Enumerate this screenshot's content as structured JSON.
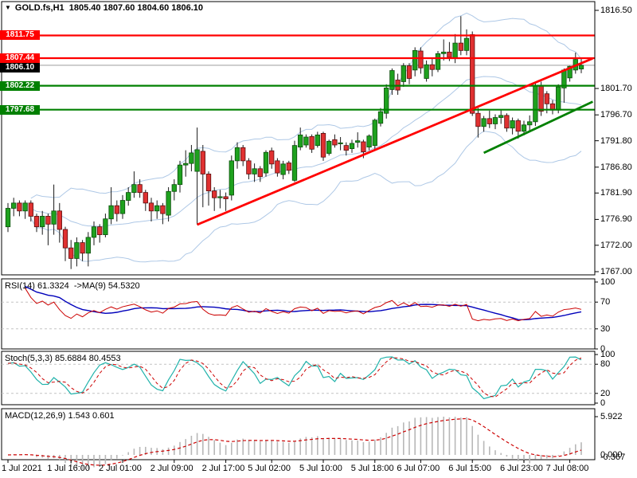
{
  "title_bar": {
    "dropdown_icon": "▼",
    "symbol": "GOLD.fs,H1",
    "ohlc_text": "1805.40 1807.60 1804.60 1806.10"
  },
  "colors": {
    "background": "#ffffff",
    "panel_border": "#000000",
    "bull_fill": "#1ea11e",
    "bull_stroke": "#0b4d0b",
    "bear_fill": "#e03131",
    "bear_stroke": "#5a0d0d",
    "wick": "#1a1a1a",
    "bollinger": "#aec8e6",
    "resistance_line": "#ff0000",
    "support_line": "#008000",
    "current_price_line": "#a8a8a8",
    "badge_red": "#ff0000",
    "badge_green": "#008000",
    "badge_black": "#000000",
    "rsi_line": "#cc0000",
    "rsi_ma_line": "#0000bb",
    "stoch_main": "#20b2aa",
    "stoch_signal": "#cc0000",
    "macd_histogram": "#b8b8b8",
    "macd_signal": "#cc0000",
    "level_dash": "#c4c4c4"
  },
  "chart_data": {
    "type": "candlestick",
    "title": "GOLD.fs,H1 1805.40 1807.60 1804.60 1806.10",
    "symbol": "GOLD.fs,H1",
    "timeframe": "H1",
    "last_candle": {
      "open": 1805.4,
      "high": 1807.6,
      "low": 1804.6,
      "close": 1806.1
    },
    "price_axis": {
      "min": 1767.0,
      "max": 1816.5,
      "plain_ticks": [
        1816.5,
        1801.7,
        1796.7,
        1791.8,
        1786.8,
        1781.9,
        1776.9,
        1772.0,
        1767.0
      ]
    },
    "levels": [
      {
        "label": "1811.75",
        "price": 1811.75,
        "kind": "resistance",
        "color": "red"
      },
      {
        "label": "1807.44",
        "price": 1807.44,
        "kind": "resistance",
        "color": "red"
      },
      {
        "label": "1806.10",
        "price": 1806.1,
        "kind": "current-price",
        "color": "black"
      },
      {
        "label": "1802.22",
        "price": 1802.22,
        "kind": "support",
        "color": "green"
      },
      {
        "label": "1797.68",
        "price": 1797.68,
        "kind": "support",
        "color": "green"
      }
    ],
    "trendlines": [
      {
        "i1": 33,
        "p1": 1775.9,
        "i2": 102,
        "p2": 1807.4,
        "color": "red"
      },
      {
        "i1": 83,
        "p1": 1789.5,
        "i2": 102,
        "p2": 1799.2,
        "color": "green"
      }
    ],
    "time_labels": [
      {
        "i": 0,
        "t": "1 Jul 2021"
      },
      {
        "i": 11,
        "t": "1 Jul 16:00"
      },
      {
        "i": 20,
        "t": "2 Jul 01:00"
      },
      {
        "i": 29,
        "t": "2 Jul 09:00"
      },
      {
        "i": 38,
        "t": "2 Jul 17:00"
      },
      {
        "i": 46,
        "t": "5 Jul 02:00"
      },
      {
        "i": 55,
        "t": "5 Jul 10:00"
      },
      {
        "i": 64,
        "t": "5 Jul 18:00"
      },
      {
        "i": 72,
        "t": "6 Jul 07:00"
      },
      {
        "i": 81,
        "t": "6 Jul 15:00"
      },
      {
        "i": 90,
        "t": "6 Jul 23:00"
      },
      {
        "i": 98,
        "t": "7 Jul 08:00"
      }
    ],
    "candles": [
      [
        1775.5,
        1780.0,
        1774.5,
        1779.0
      ],
      [
        1779.0,
        1781.0,
        1777.5,
        1780.0
      ],
      [
        1780.0,
        1780.5,
        1777.5,
        1778.5
      ],
      [
        1778.5,
        1780.5,
        1777.0,
        1780.0
      ],
      [
        1780.0,
        1780.5,
        1776.5,
        1777.5
      ],
      [
        1777.5,
        1778.0,
        1774.5,
        1775.5
      ],
      [
        1775.5,
        1778.5,
        1774.0,
        1777.5
      ],
      [
        1777.5,
        1778.0,
        1772.0,
        1776.0
      ],
      [
        1776.0,
        1783.5,
        1774.0,
        1778.5
      ],
      [
        1778.5,
        1780.0,
        1772.5,
        1775.0
      ],
      [
        1775.0,
        1775.5,
        1769.0,
        1771.5
      ],
      [
        1771.5,
        1773.0,
        1767.5,
        1769.5
      ],
      [
        1769.5,
        1773.5,
        1768.0,
        1772.5
      ],
      [
        1772.5,
        1773.0,
        1769.0,
        1770.5
      ],
      [
        1770.5,
        1774.5,
        1768.0,
        1773.5
      ],
      [
        1773.5,
        1776.5,
        1772.0,
        1775.5
      ],
      [
        1775.5,
        1776.0,
        1772.5,
        1774.0
      ],
      [
        1774.0,
        1778.0,
        1773.5,
        1777.0
      ],
      [
        1777.0,
        1783.0,
        1776.0,
        1779.5
      ],
      [
        1779.5,
        1780.5,
        1776.5,
        1778.0
      ],
      [
        1778.0,
        1781.5,
        1777.0,
        1780.5
      ],
      [
        1780.5,
        1783.0,
        1779.5,
        1782.0
      ],
      [
        1782.0,
        1786.0,
        1781.0,
        1783.5
      ],
      [
        1783.5,
        1784.5,
        1781.0,
        1782.0
      ],
      [
        1782.0,
        1782.5,
        1778.5,
        1780.0
      ],
      [
        1780.0,
        1781.0,
        1776.5,
        1778.5
      ],
      [
        1778.5,
        1780.5,
        1777.0,
        1779.5
      ],
      [
        1779.5,
        1780.0,
        1776.0,
        1778.0
      ],
      [
        1777.7,
        1783.0,
        1776.5,
        1782.2
      ],
      [
        1782.2,
        1784.5,
        1780.5,
        1783.5
      ],
      [
        1783.5,
        1788.0,
        1782.0,
        1787.2
      ],
      [
        1787.2,
        1790.0,
        1785.0,
        1787.5
      ],
      [
        1787.5,
        1791.0,
        1786.0,
        1789.5
      ],
      [
        1786.0,
        1794.3,
        1775.9,
        1790.1
      ],
      [
        1789.8,
        1791.0,
        1779.2,
        1785.5
      ],
      [
        1785.5,
        1786.0,
        1779.5,
        1782.3
      ],
      [
        1782.3,
        1783.0,
        1778.5,
        1781.0
      ],
      [
        1781.0,
        1782.5,
        1779.0,
        1781.2
      ],
      [
        1781.2,
        1782.0,
        1778.5,
        1780.8
      ],
      [
        1781.5,
        1789.0,
        1780.5,
        1788.0
      ],
      [
        1788.0,
        1791.5,
        1786.5,
        1790.5
      ],
      [
        1790.5,
        1791.0,
        1787.0,
        1788.0
      ],
      [
        1788.0,
        1788.5,
        1784.5,
        1785.5
      ],
      [
        1785.5,
        1787.5,
        1784.0,
        1786.5
      ],
      [
        1786.5,
        1787.0,
        1784.0,
        1785.0
      ],
      [
        1785.7,
        1790.0,
        1785.0,
        1789.6
      ],
      [
        1789.9,
        1790.5,
        1786.5,
        1787.4
      ],
      [
        1788.0,
        1788.5,
        1785.0,
        1785.7
      ],
      [
        1785.4,
        1788.0,
        1784.5,
        1787.4
      ],
      [
        1787.6,
        1788.0,
        1785.5,
        1786.2
      ],
      [
        1784.3,
        1791.8,
        1784.0,
        1790.9
      ],
      [
        1790.6,
        1794.3,
        1790.0,
        1792.9
      ],
      [
        1791.0,
        1793.0,
        1790.5,
        1792.5
      ],
      [
        1792.6,
        1793.0,
        1789.5,
        1790.2
      ],
      [
        1790.9,
        1793.5,
        1790.5,
        1792.9
      ],
      [
        1793.2,
        1793.5,
        1788.0,
        1788.7
      ],
      [
        1789.4,
        1792.0,
        1789.0,
        1791.7
      ],
      [
        1792.0,
        1793.0,
        1790.5,
        1791.0
      ],
      [
        1791.3,
        1792.5,
        1790.0,
        1791.4
      ],
      [
        1790.9,
        1791.5,
        1789.0,
        1790.0
      ],
      [
        1790.3,
        1792.0,
        1789.5,
        1791.3
      ],
      [
        1791.5,
        1793.4,
        1790.5,
        1791.8
      ],
      [
        1791.6,
        1792.0,
        1788.5,
        1789.7
      ],
      [
        1790.6,
        1793.0,
        1790.0,
        1792.7
      ],
      [
        1790.9,
        1796.0,
        1790.0,
        1795.7
      ],
      [
        1795.1,
        1798.0,
        1794.5,
        1797.3
      ],
      [
        1797.0,
        1802.5,
        1796.0,
        1801.8
      ],
      [
        1801.5,
        1805.5,
        1800.5,
        1805.1
      ],
      [
        1803.3,
        1804.5,
        1800.5,
        1801.4
      ],
      [
        1803.0,
        1806.5,
        1802.0,
        1806.0
      ],
      [
        1806.0,
        1806.5,
        1802.5,
        1803.6
      ],
      [
        1805.2,
        1809.5,
        1804.0,
        1808.9
      ],
      [
        1808.8,
        1809.5,
        1804.5,
        1805.6
      ],
      [
        1803.6,
        1807.0,
        1803.0,
        1806.2
      ],
      [
        1806.2,
        1807.5,
        1804.0,
        1805.3
      ],
      [
        1805.3,
        1808.8,
        1804.8,
        1808.3
      ],
      [
        1808.3,
        1811.0,
        1807.0,
        1808.6
      ],
      [
        1808.6,
        1810.5,
        1806.9,
        1807.6
      ],
      [
        1807.4,
        1812.0,
        1806.5,
        1810.3
      ],
      [
        1810.3,
        1815.4,
        1808.0,
        1808.9
      ],
      [
        1808.9,
        1812.9,
        1808.0,
        1811.2
      ],
      [
        1811.9,
        1812.5,
        1796.5,
        1797.0
      ],
      [
        1797.0,
        1798.0,
        1792.4,
        1794.5
      ],
      [
        1794.5,
        1796.5,
        1793.5,
        1796.0
      ],
      [
        1796.0,
        1797.5,
        1794.2,
        1795.0
      ],
      [
        1795.0,
        1796.8,
        1794.0,
        1796.2
      ],
      [
        1796.2,
        1797.6,
        1795.0,
        1796.6
      ],
      [
        1796.6,
        1797.0,
        1793.5,
        1794.2
      ],
      [
        1794.2,
        1796.2,
        1793.0,
        1795.6
      ],
      [
        1795.6,
        1796.0,
        1792.2,
        1793.6
      ],
      [
        1793.6,
        1795.6,
        1792.8,
        1794.8
      ],
      [
        1794.8,
        1796.6,
        1793.8,
        1795.4
      ],
      [
        1795.4,
        1803.0,
        1794.6,
        1802.3
      ],
      [
        1802.3,
        1803.0,
        1796.5,
        1797.4
      ],
      [
        1800.7,
        1801.2,
        1797.0,
        1798.8
      ],
      [
        1798.8,
        1799.5,
        1796.8,
        1797.6
      ],
      [
        1797.6,
        1802.5,
        1797.0,
        1802.0
      ],
      [
        1801.8,
        1805.5,
        1799.0,
        1805.2
      ],
      [
        1803.7,
        1806.0,
        1803.0,
        1805.9
      ],
      [
        1805.2,
        1808.5,
        1804.5,
        1807.2
      ],
      [
        1805.4,
        1807.6,
        1804.6,
        1806.1
      ]
    ],
    "indicators": {
      "bollinger": {
        "period": 20,
        "deviation": 2
      },
      "rsi": {
        "label": "RSI(14) 61.3324  ->MA(9) 54.5320",
        "period": 14,
        "ma_period": 9,
        "value": 61.3324,
        "ma_value": 54.532,
        "scale": [
          "100",
          "70",
          "30",
          "0"
        ],
        "level_lines": [
          70,
          30
        ]
      },
      "stochastic": {
        "label": "Stoch(5,3,3) 85.6884 80.4553",
        "k": 5,
        "d": 3,
        "slowing": 3,
        "value": 85.6884,
        "signal_value": 80.4553,
        "scale": [
          "100",
          "80",
          "20",
          "0"
        ],
        "level_lines": [
          80,
          20
        ]
      },
      "macd": {
        "label": "MACD(12,26,9) 1.543 0.601",
        "fast": 12,
        "slow": 26,
        "signal": 9,
        "value": 1.543,
        "signal_value": 0.601,
        "scale_max": "5.922",
        "scale_zero": "0.000",
        "scale_min": "-0.367"
      }
    }
  }
}
